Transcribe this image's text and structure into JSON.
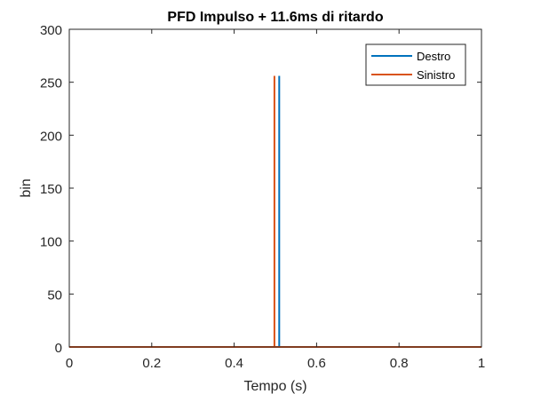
{
  "chart_data": {
    "type": "line",
    "title": "PFD Impulso + 11.6ms di ritardo",
    "xlabel": "Tempo (s)",
    "ylabel": "bin",
    "xlim": [
      0,
      1
    ],
    "ylim": [
      0,
      300
    ],
    "xticks": [
      "0",
      "0.2",
      "0.4",
      "0.6",
      "0.8",
      "1"
    ],
    "yticks": [
      "0",
      "50",
      "100",
      "150",
      "200",
      "250",
      "300"
    ],
    "grid": false,
    "legend_position": "top-right",
    "series": [
      {
        "name": "Destro",
        "color": "#0072BD",
        "x": [
          0,
          0.5093,
          0.5093,
          0.5093,
          1
        ],
        "y": [
          0,
          0,
          256,
          0,
          0
        ]
      },
      {
        "name": "Sinistro",
        "color": "#D95319",
        "x": [
          0,
          0.4977,
          0.4977,
          0.4977,
          1
        ],
        "y": [
          0,
          0,
          256,
          0,
          0
        ]
      }
    ]
  }
}
